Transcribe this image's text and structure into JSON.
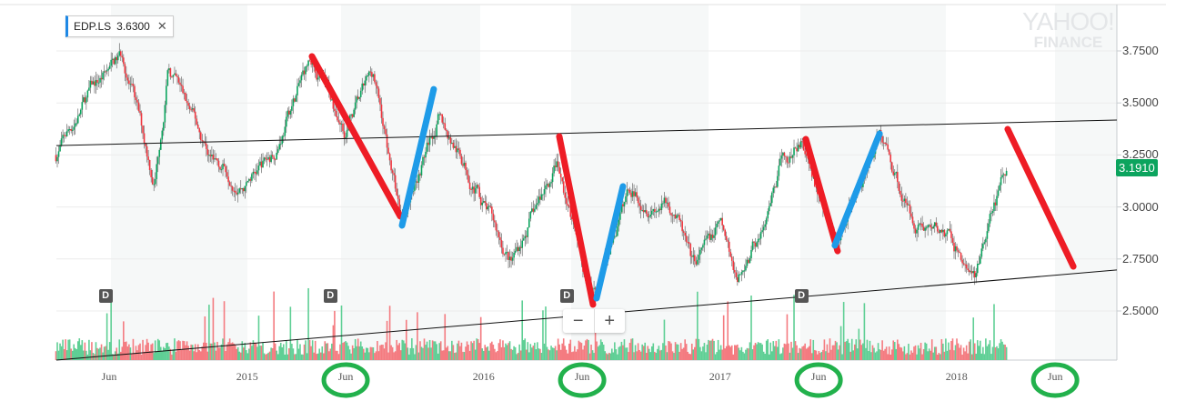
{
  "legend": {
    "symbol": "EDP.LS",
    "value": "3.6300",
    "close_icon": "close-icon"
  },
  "logo": {
    "line1": "YAHOO!",
    "line2": "FINANCE"
  },
  "current_price": "3.1910",
  "zoom": {
    "minus": "−",
    "plus": "+"
  },
  "dividend_marker": "D",
  "colors": {
    "up": "#0ca45e",
    "down": "#f0353e",
    "accent": "#1e88e5",
    "annot_red": "#ee1c25",
    "annot_blue": "#1e9be8",
    "circle": "#22b14c"
  },
  "chart_data": {
    "type": "candlestick",
    "title": "EDP.LS",
    "x_unit": "months since Jan 2014",
    "ylim": [
      2.264,
      3.97
    ],
    "xlim": [
      2.32,
      56.13
    ],
    "y_ticks": [
      "3.7500",
      "3.5000",
      "3.2500",
      "3.0000",
      "2.7500",
      "2.5000"
    ],
    "y_tick_values": [
      3.75,
      3.5,
      3.25,
      3.0,
      2.75,
      2.5
    ],
    "x_ticks": [
      {
        "label": "Jun",
        "t": 5
      },
      {
        "label": "2015",
        "t": 12
      },
      {
        "label": "Jun",
        "t": 17
      },
      {
        "label": "2016",
        "t": 24
      },
      {
        "label": "Jun",
        "t": 29
      },
      {
        "label": "2017",
        "t": 36
      },
      {
        "label": "Jun",
        "t": 41
      },
      {
        "label": "2018",
        "t": 48
      },
      {
        "label": "Jun",
        "t": 53
      }
    ],
    "close_anchors": [
      [
        2.3,
        3.25
      ],
      [
        4.1,
        3.56
      ],
      [
        5.7,
        3.73
      ],
      [
        7.3,
        3.12
      ],
      [
        8.0,
        3.67
      ],
      [
        10.1,
        3.25
      ],
      [
        11.9,
        3.12
      ],
      [
        13.3,
        3.25
      ],
      [
        15.2,
        3.71
      ],
      [
        17.0,
        3.38
      ],
      [
        18.4,
        3.64
      ],
      [
        19.8,
        2.95
      ],
      [
        21.7,
        3.43
      ],
      [
        23.5,
        3.12
      ],
      [
        25.4,
        2.73
      ],
      [
        27.7,
        3.21
      ],
      [
        29.5,
        2.55
      ],
      [
        31.4,
        3.08
      ],
      [
        33.7,
        2.99
      ],
      [
        34.6,
        2.7
      ],
      [
        36.0,
        2.9
      ],
      [
        36.9,
        2.66
      ],
      [
        38.5,
        2.95
      ],
      [
        39.0,
        3.16
      ],
      [
        40.1,
        3.3
      ],
      [
        42.0,
        2.81
      ],
      [
        44.1,
        3.36
      ],
      [
        45.7,
        2.95
      ],
      [
        47.5,
        2.86
      ],
      [
        48.9,
        2.66
      ],
      [
        50.2,
        3.08
      ],
      [
        50.6,
        3.191
      ]
    ],
    "dividends_t": [
      4.8,
      16.2,
      28.2,
      40.1
    ],
    "annotations": {
      "trendlines": [
        [
          [
            2.32,
            3.295
          ],
          [
            56.13,
            3.418
          ]
        ],
        [
          [
            2.32,
            2.264
          ],
          [
            56.13,
            2.697
          ]
        ]
      ],
      "red": [
        [
          [
            15.29,
            3.724
          ],
          [
            19.77,
            2.955
          ]
        ],
        [
          [
            27.84,
            3.339
          ],
          [
            29.55,
            2.531
          ]
        ],
        [
          [
            40.35,
            3.326
          ],
          [
            41.96,
            2.788
          ]
        ],
        [
          [
            50.59,
            3.374
          ],
          [
            53.92,
            2.714
          ]
        ]
      ],
      "blue": [
        [
          [
            19.86,
            2.911
          ],
          [
            21.47,
            3.566
          ]
        ],
        [
          [
            29.73,
            2.561
          ],
          [
            31.07,
            3.099
          ]
        ],
        [
          [
            41.82,
            2.815
          ],
          [
            44.09,
            3.352
          ]
        ]
      ],
      "circled_ticks": [
        2,
        4,
        6,
        8
      ]
    }
  }
}
